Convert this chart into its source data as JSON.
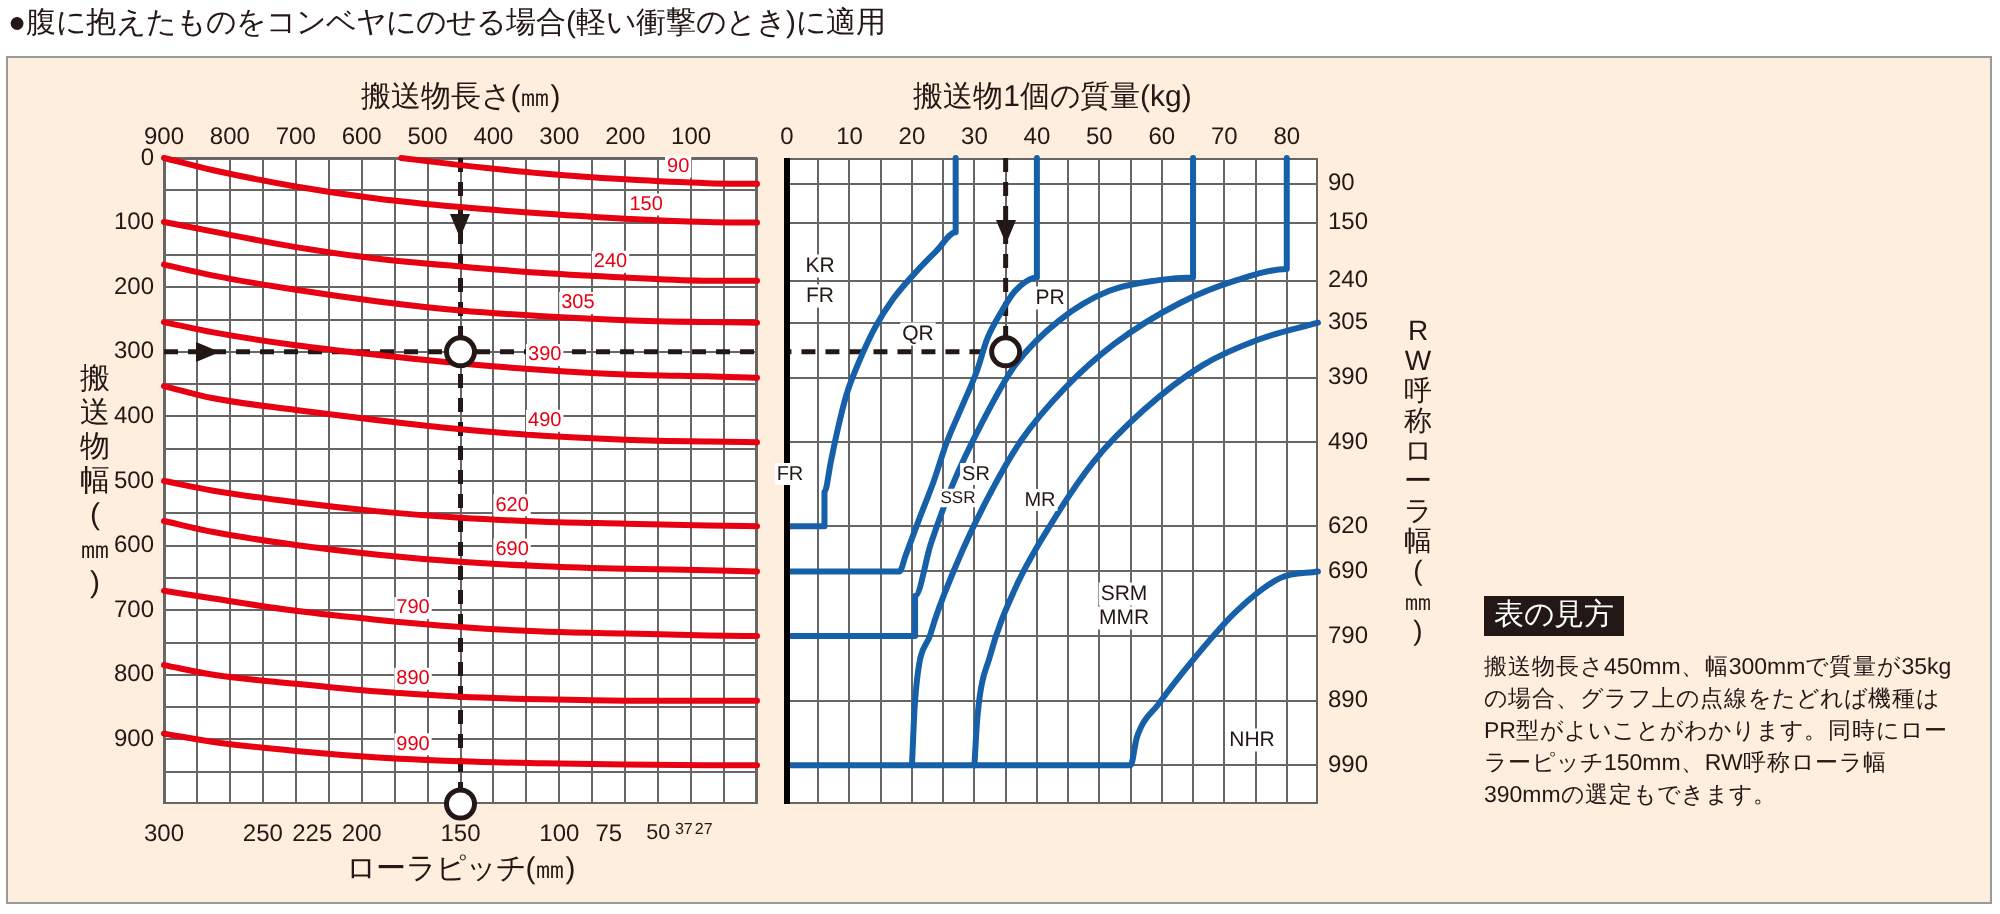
{
  "chart_data": [
    {
      "type": "line",
      "title": "●腹に抱えたものをコンベヤにのせる場合(軽い衝撃のとき)に適用",
      "xlabel": "搬送物長さ(㎜)",
      "ylabel": "搬送物幅(㎜)",
      "x2label": "ローラピッチ(㎜)",
      "xlim": [
        900,
        0
      ],
      "xticks": [
        900,
        {
          "value": 850,
          "label": null
        },
        800,
        {
          "value": 750,
          "label": null
        },
        700,
        {
          "value": 650,
          "label": null
        },
        600,
        {
          "value": 550,
          "label": null
        },
        500,
        {
          "value": 450,
          "label": null
        },
        400,
        {
          "value": 350,
          "label": null
        },
        300,
        {
          "value": 250,
          "label": null
        },
        200,
        {
          "value": 150,
          "label": null
        },
        100,
        {
          "value": 50,
          "label": null
        },
        {
          "value": 0,
          "label": null
        }
      ],
      "x2lim": [
        300,
        0
      ],
      "x2ticks": [
        300,
        250,
        225,
        200,
        150,
        100,
        75,
        50,
        37,
        27
      ],
      "ylim": [
        1000,
        0
      ],
      "yticks": [
        0,
        {
          "value": 50,
          "label": null
        },
        100,
        {
          "value": 150,
          "label": null
        },
        200,
        {
          "value": 250,
          "label": null
        },
        300,
        {
          "value": 350,
          "label": null
        },
        400,
        {
          "value": 450,
          "label": null
        },
        500,
        {
          "value": 550,
          "label": null
        },
        600,
        {
          "value": 650,
          "label": null
        },
        700,
        {
          "value": 750,
          "label": null
        },
        800,
        {
          "value": 850,
          "label": null
        },
        900,
        {
          "value": 950,
          "label": null
        }
      ],
      "grid": true,
      "x": [
        900,
        825,
        700,
        575,
        450,
        325,
        200,
        75,
        0
      ],
      "series": [
        {
          "name": "90",
          "color": "#e60012",
          "x": [
            540,
            450,
            325,
            200,
            75,
            0
          ],
          "values": [
            0,
            11,
            24,
            33,
            39,
            40
          ]
        },
        {
          "name": "150",
          "color": "#e60012",
          "values": [
            0,
            19,
            44,
            63,
            76,
            86,
            94,
            99,
            100
          ]
        },
        {
          "name": "240",
          "color": "#e60012",
          "values": [
            99,
            114,
            138,
            156,
            168,
            178,
            185,
            190,
            190
          ]
        },
        {
          "name": "305",
          "color": "#e60012",
          "values": [
            165,
            182,
            204,
            222,
            236,
            245,
            251,
            254,
            255
          ]
        },
        {
          "name": "390",
          "color": "#e60012",
          "values": [
            254,
            270,
            290,
            305,
            318,
            328,
            335,
            338,
            340
          ]
        },
        {
          "name": "490",
          "color": "#e60012",
          "values": [
            353,
            372,
            390,
            406,
            420,
            430,
            436,
            439,
            440
          ]
        },
        {
          "name": "620",
          "color": "#e60012",
          "values": [
            500,
            515,
            533,
            547,
            557,
            563,
            566,
            569,
            570
          ]
        },
        {
          "name": "690",
          "color": "#e60012",
          "values": [
            562,
            579,
            599,
            614,
            625,
            632,
            636,
            638,
            640
          ]
        },
        {
          "name": "790",
          "color": "#e60012",
          "values": [
            670,
            682,
            701,
            715,
            726,
            733,
            736,
            739,
            740
          ]
        },
        {
          "name": "890",
          "color": "#e60012",
          "values": [
            785,
            800,
            814,
            826,
            834,
            838,
            840,
            840,
            840
          ]
        },
        {
          "name": "990",
          "color": "#e60012",
          "values": [
            891,
            904,
            918,
            928,
            934,
            937,
            939,
            940,
            940
          ]
        },
        {
          "type": "line",
          "color": "#231815",
          "line_style": "dashed",
          "x": [
            450,
            450
          ],
          "values": [
            0,
            1000
          ]
        },
        {
          "type": "line",
          "color": "#231815",
          "line_style": "dashed",
          "x": [
            900,
            0
          ],
          "values": [
            300,
            300
          ]
        },
        {
          "type": "scatter",
          "color": "#231815",
          "marker": "circle",
          "x": [
            450,
            450
          ],
          "values": [
            300,
            1000
          ]
        }
      ]
    },
    {
      "type": "line",
      "xlabel": "搬送物1個の質量(kg)",
      "y2label": "RW呼称ローラ幅(㎜)",
      "xlim": [
        0,
        85
      ],
      "xticks": [
        0,
        {
          "value": 5,
          "label": null
        },
        10,
        {
          "value": 15,
          "label": null
        },
        20,
        {
          "value": 25,
          "label": null
        },
        30,
        {
          "value": 35,
          "label": null
        },
        40,
        {
          "value": 45,
          "label": null
        },
        50,
        {
          "value": 55,
          "label": null
        },
        60,
        {
          "value": 65,
          "label": null
        },
        70,
        {
          "value": 75,
          "label": null
        },
        80
      ],
      "ylim": [
        1000,
        0
      ],
      "y2lim": [
        1050,
        50
      ],
      "y2ticks": [
        90,
        150,
        240,
        305,
        390,
        490,
        620,
        690,
        790,
        890,
        990
      ],
      "tick_labels": "x",
      "grid": true,
      "series": [
        {
          "color": "#1560a8",
          "x": [
            27,
            27,
            24,
            20.5,
            17,
            14,
            11.5,
            9.5,
            8,
            7,
            6,
            6,
            0
          ],
          "values": [
            0,
            115,
            143,
            178,
            218,
            264,
            316,
            367,
            425,
            471,
            517,
            570,
            570
          ]
        },
        {
          "color": "#1560a8",
          "x": [
            40,
            40,
            36.5,
            34.5,
            32,
            30.5,
            28,
            25.5,
            23.5,
            21,
            19,
            18,
            0
          ],
          "values": [
            0,
            185,
            206,
            235,
            281,
            327,
            385,
            442,
            500,
            563,
            615,
            640,
            640
          ]
        },
        {
          "color": "#1560a8",
          "x": [
            65,
            65,
            59.5,
            51.5,
            43.5,
            36.5,
            31,
            26.5,
            23,
            20.5,
            20.5,
            0
          ],
          "values": [
            0,
            185,
            189,
            206,
            252,
            321,
            414,
            506,
            598,
            678,
            740,
            740
          ]
        },
        {
          "color": "#1560a8",
          "x": [
            80,
            80,
            72,
            63,
            52.5,
            44.5,
            37.5,
            32,
            27,
            23,
            20.5,
            20
          ],
          "values": [
            0,
            172,
            189,
            224,
            287,
            356,
            437,
            529,
            632,
            736,
            840,
            940
          ]
        },
        {
          "color": "#1560a8",
          "x": [
            85,
            75.5,
            66.5,
            57,
            49,
            42.5,
            36.5,
            32.5,
            30.5,
            30
          ],
          "values": [
            255,
            281,
            321,
            391,
            471,
            563,
            667,
            771,
            863,
            940
          ]
        },
        {
          "color": "#1560a8",
          "x": [
            85,
            79,
            72,
            65.5,
            59.5,
            56,
            55,
            0
          ],
          "values": [
            640,
            650,
            701,
            771,
            845,
            897,
            940,
            940
          ]
        },
        {
          "type": "line",
          "color": "#231815",
          "line_style": "dashed",
          "x": [
            35,
            35,
            0
          ],
          "values": [
            0,
            300,
            300
          ]
        },
        {
          "type": "scatter",
          "color": "#231815",
          "marker": "circle",
          "x": [
            35
          ],
          "values": [
            300
          ]
        }
      ],
      "annotations": [
        "KR",
        "FR",
        "QR",
        "PR",
        "FR",
        "SR",
        "SSR",
        "MR",
        "SRM",
        "MMR",
        "NHR",
        "表の見方",
        "搬送物長さ450mm、幅300mmで質量が35kgの場合、グラフ上の点線をたどれば機種はPR型がよいことがわかります。同時にローラーピッチ150mm、RW呼称ローラ幅390mmの選定もできます。"
      ]
    }
  ]
}
